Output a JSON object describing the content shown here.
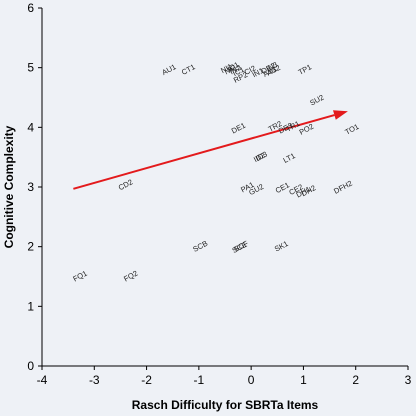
{
  "chart_data": {
    "type": "scatter",
    "title": "",
    "xlabel": "Rasch Difficulty for SBRTa Items",
    "ylabel": "Cognitive Complexity",
    "xlim": [
      -4,
      3
    ],
    "ylim": [
      0,
      6
    ],
    "xticks": [
      "-4",
      "-3",
      "-2",
      "-1",
      "0",
      "1",
      "2",
      "3"
    ],
    "yticks": [
      "0",
      "1",
      "2",
      "3",
      "4",
      "5",
      "6"
    ],
    "grid": false,
    "legend": "none",
    "label_color": "#222222",
    "arrow_color": "#e31a1c",
    "points": [
      {
        "label": "AU1",
        "x": -1.55,
        "y": 4.93
      },
      {
        "label": "CT1",
        "x": -1.18,
        "y": 4.93
      },
      {
        "label": "NI1",
        "x": -0.45,
        "y": 4.95
      },
      {
        "label": "NI2",
        "x": -0.38,
        "y": 4.93
      },
      {
        "label": "ID1",
        "x": -0.32,
        "y": 4.98
      },
      {
        "label": "IN2",
        "x": -0.28,
        "y": 4.93
      },
      {
        "label": "IC1",
        "x": -0.22,
        "y": 4.9
      },
      {
        "label": "RP2",
        "x": -0.18,
        "y": 4.8
      },
      {
        "label": "CI2",
        "x": 0.0,
        "y": 4.92
      },
      {
        "label": "IN1",
        "x": 0.15,
        "y": 4.88
      },
      {
        "label": "DE2",
        "x": 0.35,
        "y": 4.95
      },
      {
        "label": "IN3",
        "x": 0.42,
        "y": 4.98
      },
      {
        "label": "AS1",
        "x": 0.38,
        "y": 4.9
      },
      {
        "label": "AS2",
        "x": 0.45,
        "y": 4.92
      },
      {
        "label": "TP1",
        "x": 1.05,
        "y": 4.93
      },
      {
        "label": "SU2",
        "x": 1.28,
        "y": 4.42
      },
      {
        "label": "DE1",
        "x": -0.22,
        "y": 3.95
      },
      {
        "label": "TR2",
        "x": 0.48,
        "y": 3.98
      },
      {
        "label": "DE3",
        "x": 0.68,
        "y": 3.95
      },
      {
        "label": "TR1",
        "x": 0.82,
        "y": 3.98
      },
      {
        "label": "PO2",
        "x": 1.08,
        "y": 3.93
      },
      {
        "label": "TO1",
        "x": 1.95,
        "y": 3.93
      },
      {
        "label": "ID2",
        "x": 0.18,
        "y": 3.46
      },
      {
        "label": "ID3",
        "x": 0.22,
        "y": 3.48
      },
      {
        "label": "LT1",
        "x": 0.75,
        "y": 3.45
      },
      {
        "label": "CD2",
        "x": -2.38,
        "y": 3.0
      },
      {
        "label": "PA1",
        "x": -0.05,
        "y": 2.96
      },
      {
        "label": "GU2",
        "x": 0.12,
        "y": 2.92
      },
      {
        "label": "CE1",
        "x": 0.62,
        "y": 2.95
      },
      {
        "label": "CE2",
        "x": 0.88,
        "y": 2.92
      },
      {
        "label": "DH1",
        "x": 1.02,
        "y": 2.88
      },
      {
        "label": "DH2",
        "x": 1.12,
        "y": 2.9
      },
      {
        "label": "DFH2",
        "x": 1.78,
        "y": 2.96
      },
      {
        "label": "SCB",
        "x": -0.95,
        "y": 1.97
      },
      {
        "label": "SCE",
        "x": -0.2,
        "y": 1.95
      },
      {
        "label": "SCF",
        "x": -0.17,
        "y": 1.97
      },
      {
        "label": "SK1",
        "x": 0.6,
        "y": 1.97
      },
      {
        "label": "FQ1",
        "x": -3.25,
        "y": 1.47
      },
      {
        "label": "FQ2",
        "x": -2.28,
        "y": 1.47
      }
    ],
    "arrow": {
      "x1": -3.4,
      "y1": 2.97,
      "x2": 1.85,
      "y2": 4.27
    }
  }
}
